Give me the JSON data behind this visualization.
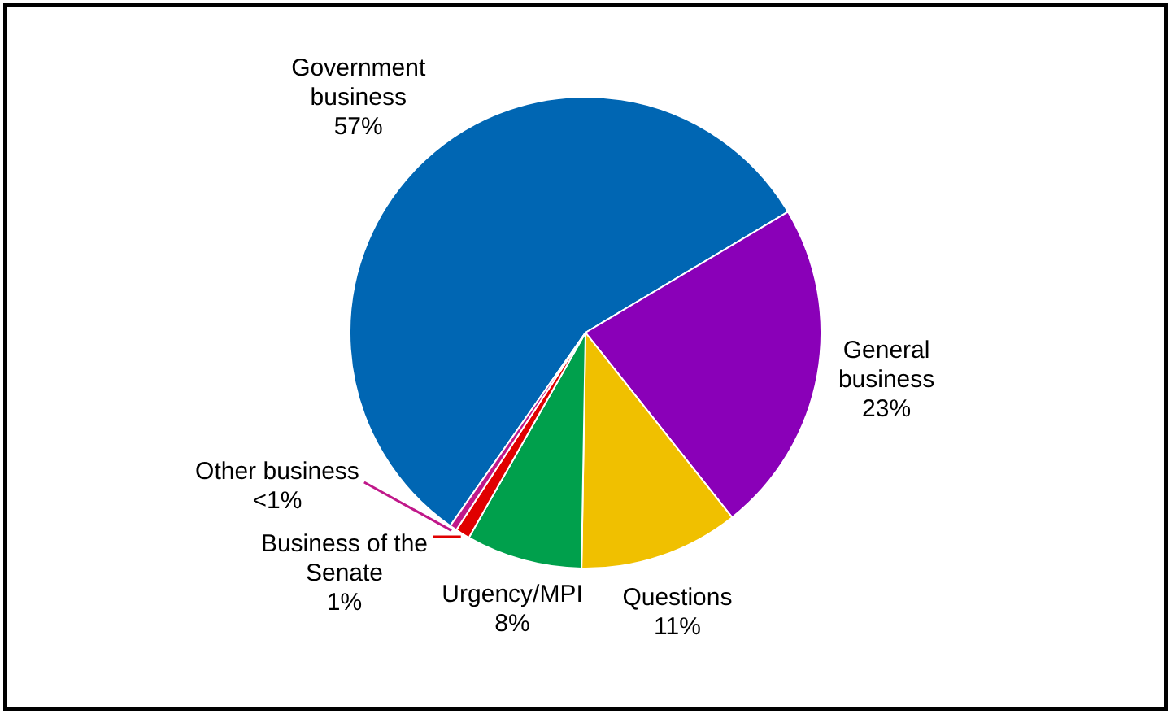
{
  "chart_data": {
    "type": "pie",
    "categories": [
      "Government business",
      "General business",
      "Questions",
      "Urgency/MPI",
      "Business of the Senate",
      "Other business"
    ],
    "values": [
      57,
      23,
      11,
      8,
      1,
      0.5
    ],
    "value_labels": [
      "57%",
      "23%",
      "11%",
      "8%",
      "1%",
      "<1%"
    ],
    "colors": [
      "#0066b3",
      "#8a00b8",
      "#f0c000",
      "#00a04c",
      "#e00000",
      "#c0188a"
    ],
    "legend": false
  }
}
